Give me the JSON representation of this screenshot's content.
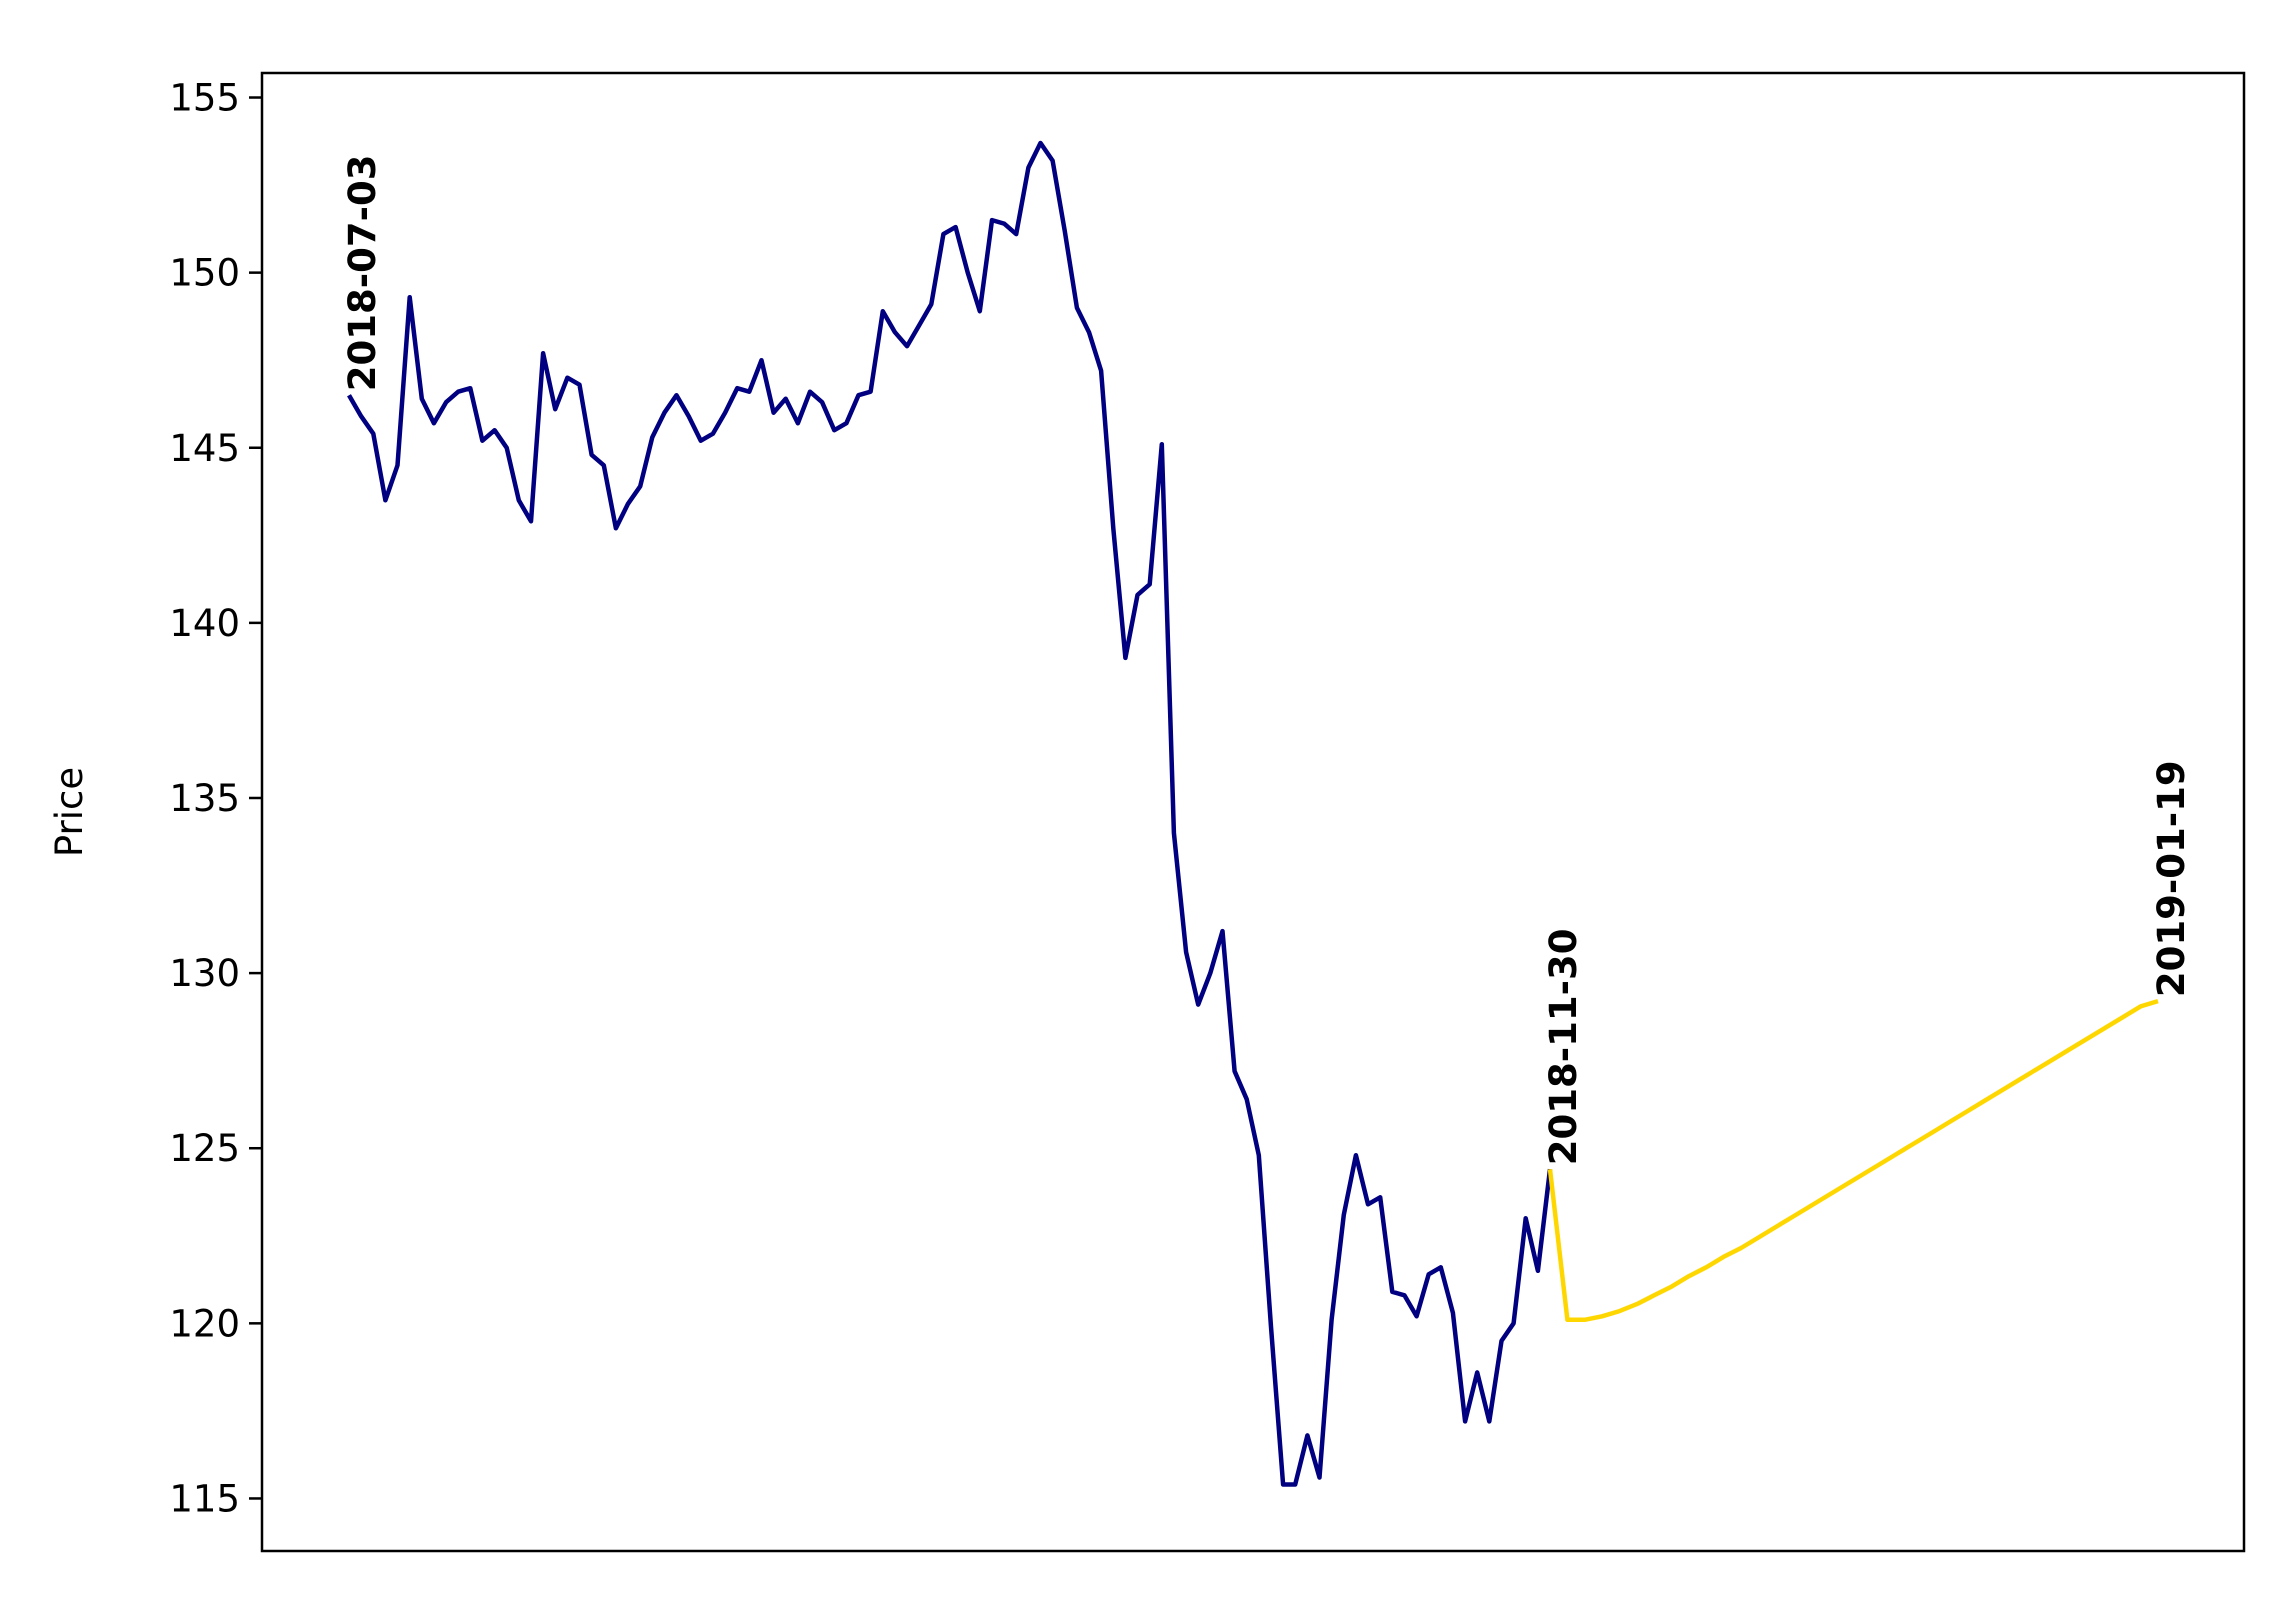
{
  "chart_data": {
    "type": "line",
    "title": "",
    "xlabel": "",
    "ylabel": "Price",
    "ylim": [
      113.5,
      155.7
    ],
    "yticks": [
      115,
      120,
      125,
      130,
      135,
      140,
      145,
      150,
      155
    ],
    "x_ticks_visible": false,
    "grid": false,
    "legend": "none",
    "colors": {
      "history": "#000080",
      "forecast": "#FFD700"
    },
    "series": [
      {
        "values": [
          146.5,
          145.9,
          145.4,
          143.5,
          144.5,
          149.3,
          146.4,
          145.7,
          146.3,
          146.6,
          146.7,
          145.2,
          145.5,
          145.0,
          143.5,
          142.9,
          147.7,
          146.1,
          147.0,
          146.8,
          144.8,
          144.5,
          142.7,
          143.4,
          143.9,
          145.3,
          146.0,
          146.5,
          145.9,
          145.2,
          145.4,
          146.0,
          146.7,
          146.6,
          147.5,
          146.0,
          146.4,
          145.7,
          146.6,
          146.3,
          145.5,
          145.7,
          146.5,
          146.6,
          148.9,
          148.3,
          147.9,
          148.5,
          149.1,
          151.1,
          151.3,
          150.0,
          148.9,
          151.5,
          151.4,
          151.1,
          153.0,
          153.7,
          153.2,
          151.2,
          149.0,
          148.3,
          147.2,
          142.7,
          139.0,
          140.8,
          141.1,
          145.1,
          134.0,
          130.6,
          129.1,
          130.0,
          131.2,
          127.2,
          126.4,
          124.8,
          119.9,
          115.4,
          115.4,
          116.8,
          115.6,
          120.1,
          123.1,
          124.8,
          123.4,
          123.6,
          120.9,
          120.8,
          120.2,
          121.4,
          121.6,
          120.3,
          117.2,
          118.6,
          117.2,
          119.5,
          120.0,
          123.0,
          121.5,
          124.4
        ]
      },
      {
        "values": [
          124.4,
          120.1,
          120.1,
          120.2,
          120.35,
          120.55,
          120.8,
          121.05,
          121.35,
          121.6,
          121.9,
          122.15,
          122.45,
          122.75,
          123.05,
          123.35,
          123.65,
          123.95,
          124.25,
          124.55,
          124.85,
          125.15,
          125.45,
          125.75,
          126.05,
          126.35,
          126.65,
          126.95,
          127.25,
          127.55,
          127.85,
          128.15,
          128.45,
          128.75,
          129.05,
          129.2
        ]
      }
    ],
    "annotations": [
      {
        "text": "2018-07-03",
        "series": 0,
        "index": 0
      },
      {
        "text": "2018-11-30",
        "series": 0,
        "index": 99
      },
      {
        "text": "2019-01-19",
        "series": 1,
        "index": 35
      }
    ]
  }
}
